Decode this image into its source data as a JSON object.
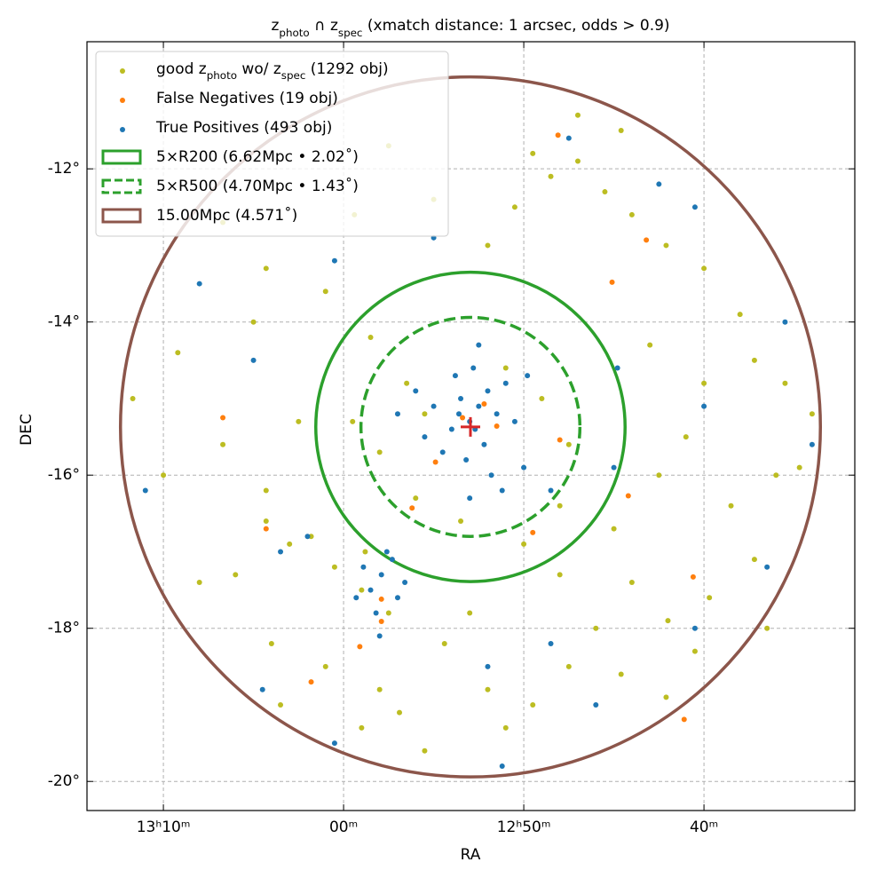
{
  "chart_data": {
    "type": "scatter",
    "title": [
      "z",
      "photo",
      " ∩ z",
      "spec",
      " (xmatch distance: 1 arcsec, odds > 0.9)"
    ],
    "x_label": "RA",
    "y_label": "DEC",
    "xlim": [
      74.24,
      31.63
    ],
    "xticks": [
      {
        "value": 70,
        "label": "13ʰ10ᵐ"
      },
      {
        "value": 60,
        "label": "00ᵐ"
      },
      {
        "value": 50,
        "label": "12ʰ50ᵐ"
      },
      {
        "value": 40,
        "label": "40ᵐ"
      }
    ],
    "ylim": [
      -20.38,
      -10.34
    ],
    "yticks": [
      {
        "value": -12,
        "label": "-12°"
      },
      {
        "value": -14,
        "label": "-14°"
      },
      {
        "value": -16,
        "label": "-16°"
      },
      {
        "value": -18,
        "label": "-18°"
      },
      {
        "value": -20,
        "label": "-20°"
      }
    ],
    "grid": true,
    "legend": "upper left",
    "center": [
      52.96,
      -15.37
    ],
    "center_color": "#d62728",
    "series": [
      {
        "name": [
          "good z",
          "photo",
          " wo/ z",
          "spec",
          " (1292 obj)"
        ],
        "color": "#bcbd22",
        "x": [
          66.7,
          64.3,
          69.2,
          71.7,
          66.7,
          64.3,
          61.8,
          64.3,
          63.0,
          66.0,
          68.0,
          64.0,
          61.0,
          63.5,
          59.0,
          58.0,
          56.9,
          55.5,
          54.4,
          52.0,
          51.0,
          49.5,
          47.5,
          46.0,
          44.6,
          42.1,
          40.5,
          39.7,
          37.2,
          38.5,
          36.0,
          34.7,
          34.0,
          35.5,
          37.2,
          38.0,
          40.0,
          42.1,
          44.0,
          45.5,
          47.0,
          48.5,
          49.5,
          44.6,
          47.0,
          50.5,
          52.0,
          55.0,
          57.5,
          59.4,
          61.0,
          58.5,
          56.5,
          55.5,
          51.0,
          49.0,
          47.5,
          48.0,
          50.0,
          53.5,
          56.0,
          58.0,
          59.5,
          45.0,
          42.5,
          41.0,
          40.0,
          43.0,
          59.0,
          57.5,
          60.5,
          58.8,
          62.5,
          65.0,
          70.0,
          53.0,
          48.0,
          44.0,
          42.0,
          36.5
        ],
        "values": [
          -12.7,
          -13.3,
          -14.4,
          -15.0,
          -15.6,
          -16.2,
          -16.8,
          -16.6,
          -16.9,
          -17.3,
          -17.4,
          -18.2,
          -18.5,
          -19.0,
          -19.3,
          -18.8,
          -19.1,
          -19.6,
          -18.2,
          -18.8,
          -19.3,
          -19.0,
          -18.5,
          -18.0,
          -18.6,
          -18.9,
          -18.3,
          -17.6,
          -17.1,
          -16.4,
          -16.0,
          -15.9,
          -15.2,
          -14.8,
          -14.5,
          -13.9,
          -13.3,
          -13.0,
          -12.6,
          -12.3,
          -11.9,
          -12.1,
          -11.8,
          -11.5,
          -11.3,
          -12.5,
          -13.0,
          -12.4,
          -11.7,
          -12.6,
          -13.6,
          -14.2,
          -14.8,
          -15.2,
          -14.6,
          -15.0,
          -15.6,
          -16.4,
          -16.9,
          -16.6,
          -16.3,
          -15.7,
          -15.3,
          -16.7,
          -16.0,
          -15.5,
          -14.8,
          -14.3,
          -17.5,
          -17.8,
          -17.2,
          -17.0,
          -15.3,
          -14.0,
          -16.0,
          -17.8,
          -17.3,
          -17.4,
          -17.9,
          -18.0
        ]
      },
      {
        "name": "False Negatives (19 obj)",
        "color": "#ff7f0e",
        "x": [
          48.1,
          43.2,
          45.1,
          44.2,
          48.0,
          51.5,
          56.2,
          57.9,
          61.8,
          59.1,
          57.9,
          52.2,
          53.4,
          64.3,
          49.5,
          40.6,
          66.7,
          54.9,
          41.1
        ],
        "values": [
          -11.56,
          -12.93,
          -13.48,
          -16.27,
          -15.54,
          -15.36,
          -16.43,
          -17.62,
          -18.7,
          -18.24,
          -17.91,
          -15.07,
          -15.25,
          -16.7,
          -16.75,
          -17.33,
          -15.25,
          -15.83,
          -19.19
        ]
      },
      {
        "name": "True Positives (493 obj)",
        "color": "#1f77b4",
        "x": [
          52.5,
          53.0,
          52.0,
          51.5,
          53.5,
          54.0,
          51.0,
          52.8,
          53.8,
          55.0,
          50.5,
          52.2,
          53.2,
          54.5,
          51.8,
          56.0,
          49.8,
          52.5,
          55.5,
          53.0,
          51.2,
          57.0,
          50.0,
          52.7,
          53.6,
          57.9,
          58.5,
          57.3,
          58.9,
          57.0,
          58.2,
          59.3,
          57.6,
          56.6,
          58.0,
          68.0,
          71.0,
          65.0,
          60.5,
          62.0,
          63.5,
          64.5,
          60.5,
          52.0,
          51.2,
          48.5,
          46.0,
          40.5,
          36.5,
          34.0,
          35.5,
          40.5,
          42.5,
          47.5,
          55.0,
          44.8,
          40.0,
          45.0,
          48.5
        ],
        "values": [
          -15.1,
          -15.3,
          -14.9,
          -15.2,
          -15.0,
          -15.4,
          -14.8,
          -14.6,
          -14.7,
          -15.1,
          -15.3,
          -15.6,
          -15.8,
          -15.7,
          -16.0,
          -14.9,
          -14.7,
          -14.3,
          -15.5,
          -16.3,
          -16.2,
          -15.2,
          -15.9,
          -15.4,
          -15.2,
          -17.3,
          -17.5,
          -17.1,
          -17.2,
          -17.6,
          -17.8,
          -17.6,
          -17.0,
          -17.4,
          -18.1,
          -13.5,
          -16.2,
          -14.5,
          -13.2,
          -16.8,
          -17.0,
          -18.8,
          -19.5,
          -18.5,
          -19.8,
          -18.2,
          -19.0,
          -18.0,
          -17.2,
          -15.6,
          -14.0,
          -12.5,
          -12.2,
          -11.6,
          -12.9,
          -14.6,
          -15.1,
          -15.9,
          -16.2
        ]
      }
    ],
    "circles": [
      {
        "name": "5×R200 (6.62Mpc • 2.02˚)",
        "radius": 2.02,
        "color": "#2ca02c",
        "style": "solid"
      },
      {
        "name": "5×R500 (4.70Mpc • 1.43˚)",
        "radius": 1.43,
        "color": "#2ca02c",
        "style": "dashed"
      },
      {
        "name": "15.00Mpc (4.571˚)",
        "radius": 4.571,
        "color": "#8c564b",
        "style": "solid"
      }
    ]
  }
}
